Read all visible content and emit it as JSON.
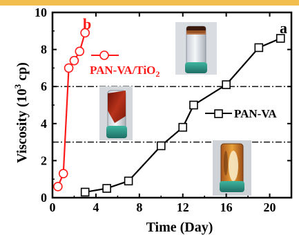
{
  "chart_data": {
    "type": "line",
    "xlabel": "Time (Day)",
    "ylabel_main": "Viscosity (10",
    "ylabel_sup": "3",
    "ylabel_tail": " cp)",
    "xlim": [
      0,
      22
    ],
    "ylim": [
      0,
      10
    ],
    "x_ticks": [
      0,
      4,
      8,
      12,
      16,
      20
    ],
    "y_ticks": [
      0,
      2,
      4,
      6,
      8,
      10
    ],
    "reference_lines": [
      6,
      3
    ],
    "series": [
      {
        "name": "PAN-VA",
        "panel": "a",
        "marker": "square",
        "color": "#000000",
        "x": [
          3,
          5,
          7,
          10,
          12,
          13,
          16,
          19,
          21
        ],
        "y": [
          0.3,
          0.5,
          0.9,
          2.8,
          3.8,
          5.0,
          6.1,
          8.1,
          8.6
        ]
      },
      {
        "name": "PAN-VA/TiO",
        "name_sub": "2",
        "panel": "b",
        "marker": "circle",
        "color": "#ff1a1a",
        "x": [
          0.5,
          1.0,
          1.5,
          2.0,
          2.5,
          3.0
        ],
        "y": [
          0.6,
          1.3,
          7.0,
          7.4,
          7.9,
          8.9
        ]
      }
    ]
  }
}
